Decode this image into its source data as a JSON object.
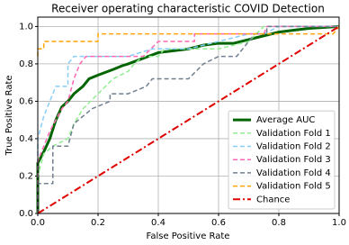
{
  "chart_data": {
    "type": "line",
    "title": "Receiver operating characteristic COVID Detection",
    "xlabel": "False Positive Rate",
    "ylabel": "True Positive Rate",
    "xlim": [
      0,
      1
    ],
    "ylim": [
      0,
      1.05
    ],
    "xticks": [
      {
        "value": 0,
        "label": "0.0"
      },
      {
        "value": 0.2,
        "label": "0.2"
      },
      {
        "value": 0.4,
        "label": "0.4"
      },
      {
        "value": 0.6,
        "label": "0.6"
      },
      {
        "value": 0.8,
        "label": "0.8"
      },
      {
        "value": 1,
        "label": "1.0"
      }
    ],
    "yticks": [
      {
        "value": 0,
        "label": "0.0"
      },
      {
        "value": 0.2,
        "label": "0.2"
      },
      {
        "value": 0.4,
        "label": "0.4"
      },
      {
        "value": 0.6,
        "label": "0.6"
      },
      {
        "value": 0.8,
        "label": "0.8"
      },
      {
        "value": 1,
        "label": "1.0"
      }
    ],
    "grid": true,
    "legend": "lower right",
    "series": [
      {
        "name": "Average AUC",
        "color": "#006400",
        "style": "solid",
        "width": 3,
        "x": [
          0,
          0,
          0.02,
          0.04,
          0.06,
          0.08,
          0.1,
          0.12,
          0.15,
          0.17,
          0.2,
          0.25,
          0.28,
          0.3,
          0.35,
          0.4,
          0.45,
          0.5,
          0.55,
          0.6,
          0.65,
          0.7,
          0.75,
          0.8,
          0.85,
          0.9,
          1
        ],
        "values": [
          0,
          0.27,
          0.33,
          0.4,
          0.5,
          0.57,
          0.6,
          0.64,
          0.68,
          0.72,
          0.74,
          0.77,
          0.79,
          0.8,
          0.83,
          0.86,
          0.87,
          0.88,
          0.9,
          0.91,
          0.91,
          0.93,
          0.95,
          0.97,
          0.98,
          0.99,
          1
        ]
      },
      {
        "name": "Validation Fold 1",
        "color": "#90ee90",
        "style": "dashed",
        "width": 1.5,
        "x": [
          0,
          0,
          0.02,
          0.05,
          0.1,
          0.12,
          0.15,
          0.2,
          0.25,
          0.3,
          0.32,
          0.35,
          0.4,
          0.42,
          0.6,
          0.7,
          0.75,
          1
        ],
        "values": [
          0,
          0.2,
          0.32,
          0.36,
          0.4,
          0.48,
          0.56,
          0.64,
          0.72,
          0.76,
          0.8,
          0.84,
          0.84,
          0.88,
          0.88,
          0.92,
          1,
          1
        ]
      },
      {
        "name": "Validation Fold 2",
        "color": "#87cefa",
        "style": "dashed",
        "width": 1.5,
        "x": [
          0,
          0,
          0.02,
          0.04,
          0.06,
          0.1,
          0.1,
          0.12,
          0.2,
          0.3,
          0.38,
          0.5,
          0.6,
          0.7,
          0.75,
          0.8,
          1
        ],
        "values": [
          0,
          0.4,
          0.52,
          0.6,
          0.68,
          0.68,
          0.8,
          0.84,
          0.84,
          0.84,
          0.88,
          0.88,
          0.92,
          0.96,
          0.96,
          1,
          1
        ]
      },
      {
        "name": "Validation Fold 3",
        "color": "#ff69b4",
        "style": "dashed",
        "width": 1.5,
        "x": [
          0,
          0,
          0.04,
          0.08,
          0.1,
          0.12,
          0.14,
          0.16,
          0.35,
          0.4,
          0.52,
          0.52,
          0.75,
          0.76,
          1
        ],
        "values": [
          0,
          0.28,
          0.44,
          0.56,
          0.6,
          0.72,
          0.8,
          0.84,
          0.84,
          0.92,
          0.92,
          0.96,
          0.96,
          1,
          1
        ]
      },
      {
        "name": "Validation Fold 4",
        "color": "#708090",
        "style": "dashed",
        "width": 1.5,
        "x": [
          0,
          0,
          0.05,
          0.05,
          0.1,
          0.12,
          0.15,
          0.18,
          0.24,
          0.24,
          0.3,
          0.36,
          0.38,
          0.5,
          0.55,
          0.6,
          0.66,
          0.68,
          0.72,
          0.76,
          0.76,
          1
        ],
        "values": [
          0,
          0.16,
          0.16,
          0.36,
          0.36,
          0.48,
          0.52,
          0.56,
          0.6,
          0.64,
          0.64,
          0.68,
          0.72,
          0.72,
          0.8,
          0.84,
          0.84,
          0.88,
          0.96,
          0.96,
          1,
          1
        ]
      },
      {
        "name": "Validation Fold 5",
        "color": "#ffa500",
        "style": "dashed",
        "width": 1.5,
        "x": [
          0,
          0,
          0.02,
          0.02,
          0.2,
          0.2,
          0.35,
          0.98,
          1
        ],
        "values": [
          0.84,
          0.88,
          0.88,
          0.92,
          0.92,
          0.96,
          0.96,
          0.96,
          1
        ]
      },
      {
        "name": "Chance",
        "color": "#e00000",
        "style": "dashdot",
        "width": 2,
        "x": [
          0,
          1
        ],
        "values": [
          0,
          1
        ]
      }
    ]
  }
}
